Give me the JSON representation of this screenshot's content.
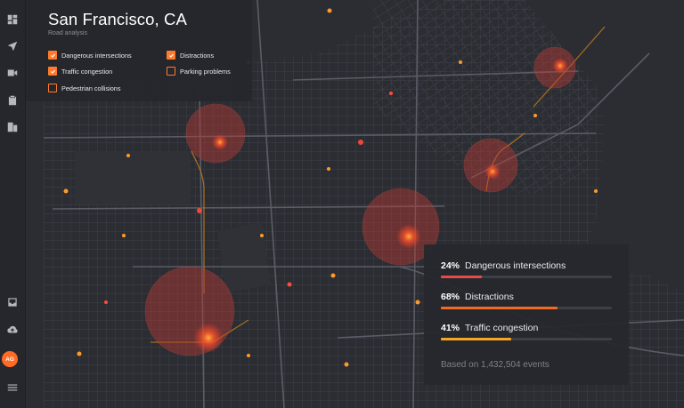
{
  "header": {
    "title": "San Francisco, CA",
    "subtitle": "Road analysis"
  },
  "filters": [
    {
      "label": "Dangerous intersections",
      "checked": true
    },
    {
      "label": "Distractions",
      "checked": true
    },
    {
      "label": "Traffic congestion",
      "checked": true
    },
    {
      "label": "Parking problems",
      "checked": false
    },
    {
      "label": "Pedestrian collisions",
      "checked": false
    }
  ],
  "stats": [
    {
      "percent_label": "24%",
      "label": "Dangerous intersections",
      "value": 0.24,
      "color": "#e84b46"
    },
    {
      "percent_label": "68%",
      "label": "Distractions",
      "value": 0.68,
      "color": "#f26a21"
    },
    {
      "percent_label": "41%",
      "label": "Traffic congestion",
      "value": 0.41,
      "color": "#f5a623"
    }
  ],
  "footer": "Based on 1,432,504 events",
  "user": {
    "initials": "AG"
  },
  "nav_icons": [
    "dashboard-icon",
    "navigation-icon",
    "video-camera-icon",
    "clipboard-icon",
    "building-icon",
    "inbox-icon",
    "cloud-upload-icon",
    "menu-icon"
  ],
  "colors": {
    "accent": "#ff6a24",
    "map_background": "#2b2d33",
    "hotspot": "#e0483d"
  }
}
